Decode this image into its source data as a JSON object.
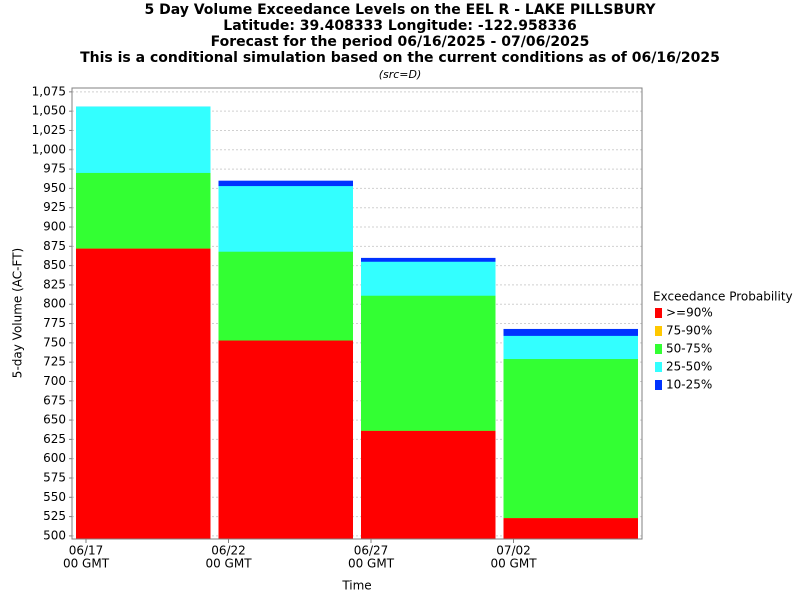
{
  "chart_data": {
    "type": "bar",
    "title": [
      "5 Day Volume Exceedance Levels on the EEL R - LAKE PILLSBURY",
      "Latitude: 39.408333 Longitude: -122.958336",
      "Forecast for the period 06/16/2025 - 07/06/2025",
      "This is a conditional simulation based on the current conditions as of 06/16/2025"
    ],
    "subtitle": "(src=D)",
    "x_label": "Time",
    "y_label": "5-day Volume (AC-FT)",
    "categories": [
      "06/17",
      "06/22",
      "06/27",
      "07/02"
    ],
    "category_sublabel": "00 GMT",
    "legend_title": "Exceedance Probability",
    "series": [
      {
        "name": ">=90%",
        "color": "#ff0000",
        "values": [
          872,
          753,
          636,
          523
        ]
      },
      {
        "name": "75-90%",
        "color": "#ffc800",
        "values": [
          872,
          753,
          636,
          523
        ]
      },
      {
        "name": "50-75%",
        "color": "#33ff33",
        "values": [
          970,
          868,
          811,
          729
        ]
      },
      {
        "name": "25-50%",
        "color": "#33ffff",
        "values": [
          1056,
          953,
          855,
          759
        ]
      },
      {
        "name": "10-25%",
        "color": "#0033ff",
        "values": [
          1056,
          960,
          860,
          768
        ]
      }
    ],
    "ylim": [
      496,
      1080
    ],
    "yticks": [
      500,
      525,
      550,
      575,
      600,
      625,
      650,
      675,
      700,
      725,
      750,
      775,
      800,
      825,
      850,
      875,
      900,
      925,
      950,
      975,
      {
        "value": 1000,
        "label": "1,000"
      },
      {
        "value": 1025,
        "label": "1,025"
      },
      {
        "value": 1050,
        "label": "1,050"
      },
      {
        "value": 1075,
        "label": "1,075"
      }
    ],
    "grid": true
  }
}
